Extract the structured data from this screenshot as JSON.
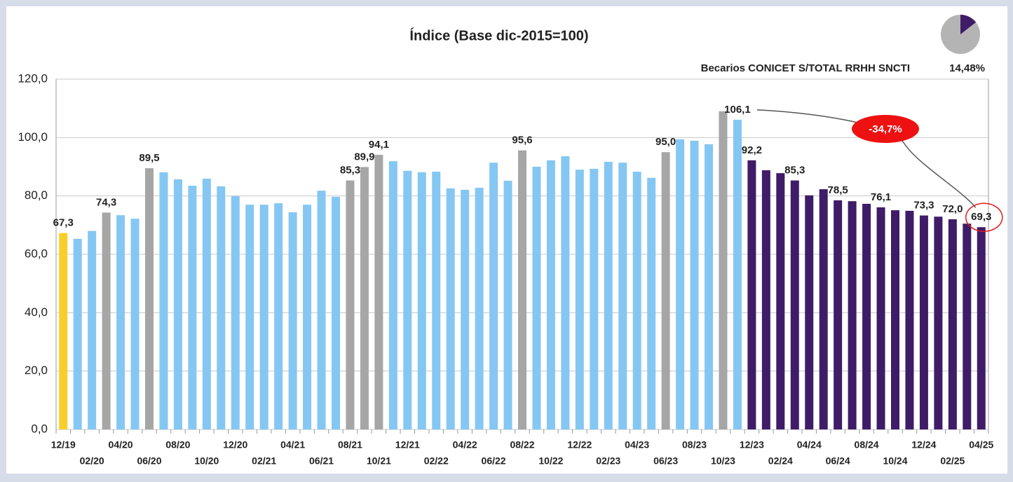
{
  "chart_data": {
    "type": "bar",
    "title": "Índice (Base dic-2015=100)",
    "categories": [
      "12/19",
      null,
      "02/20",
      null,
      "04/20",
      null,
      "06/20",
      null,
      "08/20",
      null,
      "10/20",
      null,
      "12/20",
      null,
      "02/21",
      null,
      "04/21",
      null,
      "06/21",
      null,
      "08/21",
      null,
      "10/21",
      null,
      "12/21",
      null,
      "02/22",
      null,
      "04/22",
      null,
      "06/22",
      null,
      "08/22",
      null,
      "10/22",
      null,
      "12/22",
      null,
      "02/23",
      null,
      "04/23",
      null,
      "06/23",
      null,
      "08/23",
      null,
      "10/23",
      null,
      "12/23",
      null,
      "02/24",
      null,
      "04/24",
      null,
      "06/24",
      null,
      "08/24",
      null,
      "10/24",
      null,
      "12/24",
      null,
      "02/25",
      null,
      "04/25"
    ],
    "values": [
      67.3,
      65.3,
      68.0,
      74.3,
      73.4,
      72.2,
      89.5,
      88.1,
      85.7,
      83.5,
      85.9,
      83.3,
      79.9,
      77.0,
      77.0,
      77.5,
      74.4,
      77.0,
      81.8,
      79.7,
      85.3,
      89.9,
      94.1,
      91.9,
      88.6,
      88.1,
      88.3,
      82.6,
      82.1,
      82.8,
      91.4,
      85.2,
      95.6,
      90.0,
      92.2,
      93.6,
      89.0,
      89.3,
      91.7,
      91.4,
      88.3,
      86.2,
      95.0,
      99.4,
      98.9,
      97.7,
      109.0,
      106.1,
      92.2,
      88.8,
      87.8,
      85.3,
      80.2,
      82.3,
      78.5,
      78.2,
      77.3,
      76.1,
      75.1,
      74.9,
      73.3,
      72.9,
      72.0,
      70.5,
      69.3
    ],
    "value_labels": [
      "67,3",
      null,
      null,
      "74,3",
      null,
      null,
      "89,5",
      null,
      null,
      null,
      null,
      null,
      null,
      null,
      null,
      null,
      null,
      null,
      null,
      null,
      "85,3",
      "89,9",
      "94,1",
      null,
      null,
      null,
      null,
      null,
      null,
      null,
      null,
      null,
      "95,6",
      null,
      null,
      null,
      null,
      null,
      null,
      null,
      null,
      null,
      "95,0",
      null,
      null,
      null,
      null,
      "106,1",
      "92,2",
      null,
      null,
      "85,3",
      null,
      null,
      "78,5",
      null,
      null,
      "76,1",
      null,
      null,
      "73,3",
      null,
      "72,0",
      null,
      "69,3"
    ],
    "colors": [
      "#f8cf2a",
      "#85c7f3",
      "#85c7f3",
      "#a6a6a6",
      "#85c7f3",
      "#85c7f3",
      "#a6a6a6",
      "#85c7f3",
      "#85c7f3",
      "#85c7f3",
      "#85c7f3",
      "#85c7f3",
      "#85c7f3",
      "#85c7f3",
      "#85c7f3",
      "#85c7f3",
      "#85c7f3",
      "#85c7f3",
      "#85c7f3",
      "#85c7f3",
      "#a6a6a6",
      "#a6a6a6",
      "#a6a6a6",
      "#85c7f3",
      "#85c7f3",
      "#85c7f3",
      "#85c7f3",
      "#85c7f3",
      "#85c7f3",
      "#85c7f3",
      "#85c7f3",
      "#85c7f3",
      "#a6a6a6",
      "#85c7f3",
      "#85c7f3",
      "#85c7f3",
      "#85c7f3",
      "#85c7f3",
      "#85c7f3",
      "#85c7f3",
      "#85c7f3",
      "#85c7f3",
      "#a6a6a6",
      "#85c7f3",
      "#85c7f3",
      "#85c7f3",
      "#a6a6a6",
      "#85c7f3",
      "#3f1c68",
      "#3f1c68",
      "#3f1c68",
      "#3f1c68",
      "#3f1c68",
      "#3f1c68",
      "#3f1c68",
      "#3f1c68",
      "#3f1c68",
      "#3f1c68",
      "#3f1c68",
      "#3f1c68",
      "#3f1c68",
      "#3f1c68",
      "#3f1c68",
      "#3f1c68",
      "#3f1c68"
    ],
    "ylim": [
      0,
      120
    ],
    "yticks": [
      {
        "value": 0,
        "label": "0,0"
      },
      {
        "value": 20,
        "label": "20,0"
      },
      {
        "value": 40,
        "label": "40,0"
      },
      {
        "value": 60,
        "label": "60,0"
      },
      {
        "value": 80,
        "label": "80,0"
      },
      {
        "value": 100,
        "label": "100,0"
      },
      {
        "value": 120,
        "label": "120,0"
      }
    ],
    "grid": true,
    "annotation": "-34,7%",
    "inset": {
      "type": "pie",
      "label": "Becarios CONICET S/TOTAL RRHH SNCTI",
      "value": 14.48,
      "value_label": "14,48%",
      "colors": [
        "#3f1c68",
        "#b4b4b4"
      ]
    }
  }
}
